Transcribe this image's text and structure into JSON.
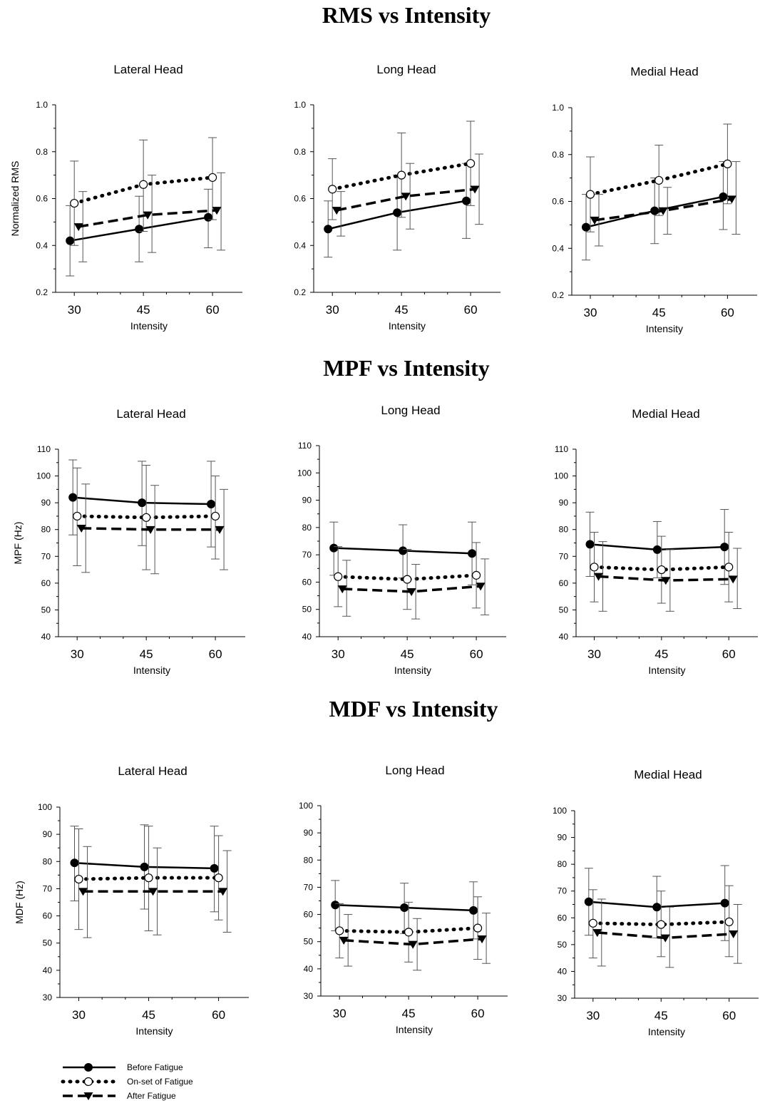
{
  "legend": [
    {
      "name": "Before Fatigue",
      "style": "solid",
      "marker": "filled-circle"
    },
    {
      "name": "On-set of Fatigue",
      "style": "dotted",
      "marker": "open-circle"
    },
    {
      "name": "After Fatigue",
      "style": "dashed",
      "marker": "filled-triangle-down"
    }
  ],
  "colors": {
    "line": "#000000",
    "errorbar": "#555555",
    "background": "#ffffff"
  },
  "chart_data": [
    {
      "type": "line",
      "section_title": "RMS vs Intensity",
      "title": "Lateral Head",
      "xlabel": "Intensity",
      "ylabel": "Normalized RMS",
      "categories": [
        "30",
        "45",
        "60"
      ],
      "ylim": [
        0.2,
        1.0
      ],
      "yticks": [
        "0.2",
        "0.4",
        "0.6",
        "0.8",
        "1.0"
      ],
      "series": [
        {
          "name": "Before Fatigue",
          "values": [
            0.42,
            0.47,
            0.52
          ],
          "upper": [
            0.57,
            0.61,
            0.64
          ],
          "lower": [
            0.27,
            0.33,
            0.39
          ]
        },
        {
          "name": "On-set of Fatigue",
          "values": [
            0.58,
            0.66,
            0.69
          ],
          "upper": [
            0.76,
            0.85,
            0.86
          ],
          "lower": [
            0.4,
            0.46,
            0.51
          ]
        },
        {
          "name": "After Fatigue",
          "values": [
            0.48,
            0.53,
            0.55
          ],
          "upper": [
            0.63,
            0.7,
            0.71
          ],
          "lower": [
            0.33,
            0.37,
            0.38
          ]
        }
      ]
    },
    {
      "type": "line",
      "section_title": "RMS vs Intensity",
      "title": "Long Head",
      "xlabel": "Intensity",
      "ylabel": "",
      "categories": [
        "30",
        "45",
        "60"
      ],
      "ylim": [
        0.2,
        1.0
      ],
      "yticks": [
        "0.2",
        "0.4",
        "0.6",
        "0.8",
        "1.0"
      ],
      "series": [
        {
          "name": "Before Fatigue",
          "values": [
            0.47,
            0.54,
            0.59
          ],
          "upper": [
            0.59,
            0.7,
            0.75
          ],
          "lower": [
            0.35,
            0.38,
            0.43
          ]
        },
        {
          "name": "On-set of Fatigue",
          "values": [
            0.64,
            0.7,
            0.75
          ],
          "upper": [
            0.77,
            0.88,
            0.93
          ],
          "lower": [
            0.51,
            0.52,
            0.57
          ]
        },
        {
          "name": "After Fatigue",
          "values": [
            0.55,
            0.61,
            0.64
          ],
          "upper": [
            0.63,
            0.75,
            0.79
          ],
          "lower": [
            0.44,
            0.47,
            0.49
          ]
        }
      ]
    },
    {
      "type": "line",
      "section_title": "RMS vs Intensity",
      "title": "Medial Head",
      "xlabel": "Intensity",
      "ylabel": "",
      "categories": [
        "30",
        "45",
        "60"
      ],
      "ylim": [
        0.2,
        1.0
      ],
      "yticks": [
        "0.2",
        "0.4",
        "0.6",
        "0.8",
        "1.0"
      ],
      "series": [
        {
          "name": "Before Fatigue",
          "values": [
            0.49,
            0.56,
            0.62
          ],
          "upper": [
            0.63,
            0.7,
            0.77
          ],
          "lower": [
            0.35,
            0.42,
            0.48
          ]
        },
        {
          "name": "On-set of Fatigue",
          "values": [
            0.63,
            0.69,
            0.76
          ],
          "upper": [
            0.79,
            0.84,
            0.93
          ],
          "lower": [
            0.47,
            0.54,
            0.59
          ]
        },
        {
          "name": "After Fatigue",
          "values": [
            0.52,
            0.56,
            0.61
          ],
          "upper": [
            0.63,
            0.66,
            0.77
          ],
          "lower": [
            0.41,
            0.46,
            0.46
          ]
        }
      ]
    },
    {
      "type": "line",
      "section_title": "MPF vs Intensity",
      "title": "Lateral Head",
      "xlabel": "Intensity",
      "ylabel": "MPF (Hz)",
      "categories": [
        "30",
        "45",
        "60"
      ],
      "ylim": [
        40,
        110
      ],
      "yticks": [
        "40",
        "50",
        "60",
        "70",
        "80",
        "90",
        "100",
        "110"
      ],
      "series": [
        {
          "name": "Before Fatigue",
          "values": [
            92,
            90,
            89.5
          ],
          "upper": [
            106,
            105.5,
            105.5
          ],
          "lower": [
            78,
            74,
            73.5
          ]
        },
        {
          "name": "On-set of Fatigue",
          "values": [
            85,
            84.5,
            85
          ],
          "upper": [
            103,
            104,
            100
          ],
          "lower": [
            66.5,
            65,
            69
          ]
        },
        {
          "name": "After Fatigue",
          "values": [
            80.5,
            80,
            80
          ],
          "upper": [
            97,
            96.5,
            95
          ],
          "lower": [
            64,
            63.5,
            65
          ]
        }
      ]
    },
    {
      "type": "line",
      "section_title": "MPF vs Intensity",
      "title": "Long Head",
      "xlabel": "Intensity",
      "ylabel": "",
      "categories": [
        "30",
        "45",
        "60"
      ],
      "ylim": [
        40,
        110
      ],
      "yticks": [
        "40",
        "50",
        "60",
        "70",
        "80",
        "90",
        "100",
        "110"
      ],
      "series": [
        {
          "name": "Before Fatigue",
          "values": [
            72.5,
            71.5,
            70.5
          ],
          "upper": [
            82,
            81,
            82
          ],
          "lower": [
            62.5,
            61.5,
            59
          ]
        },
        {
          "name": "On-set of Fatigue",
          "values": [
            62,
            61,
            62.5
          ],
          "upper": [
            73,
            72,
            74.5
          ],
          "lower": [
            51,
            50,
            50.5
          ]
        },
        {
          "name": "After Fatigue",
          "values": [
            57.5,
            56.5,
            58.5
          ],
          "upper": [
            68,
            66.5,
            68.5
          ],
          "lower": [
            47.5,
            46.5,
            48
          ]
        }
      ]
    },
    {
      "type": "line",
      "section_title": "MPF vs Intensity",
      "title": "Medial Head",
      "xlabel": "Intensity",
      "ylabel": "",
      "categories": [
        "30",
        "45",
        "60"
      ],
      "ylim": [
        40,
        110
      ],
      "yticks": [
        "40",
        "50",
        "60",
        "70",
        "80",
        "90",
        "100",
        "110"
      ],
      "series": [
        {
          "name": "Before Fatigue",
          "values": [
            74.5,
            72.5,
            73.5
          ],
          "upper": [
            86.5,
            83,
            87.5
          ],
          "lower": [
            62.5,
            62,
            59.5
          ]
        },
        {
          "name": "On-set of Fatigue",
          "values": [
            66,
            65,
            66
          ],
          "upper": [
            79,
            77.5,
            79
          ],
          "lower": [
            53,
            52.5,
            53
          ]
        },
        {
          "name": "After Fatigue",
          "values": [
            62.5,
            61,
            61.5
          ],
          "upper": [
            75.5,
            72.5,
            73
          ],
          "lower": [
            49.5,
            49.5,
            50.5
          ]
        }
      ]
    },
    {
      "type": "line",
      "section_title": "MDF vs Intensity",
      "title": "Lateral Head",
      "xlabel": "Intensity",
      "ylabel": "MDF (Hz)",
      "categories": [
        "30",
        "45",
        "60"
      ],
      "ylim": [
        30,
        100
      ],
      "yticks": [
        "30",
        "40",
        "50",
        "60",
        "70",
        "80",
        "90",
        "100"
      ],
      "series": [
        {
          "name": "Before Fatigue",
          "values": [
            79.5,
            78,
            77.5
          ],
          "upper": [
            93,
            93.5,
            93
          ],
          "lower": [
            65.5,
            62.5,
            61.5
          ]
        },
        {
          "name": "On-set of Fatigue",
          "values": [
            73.5,
            74,
            74
          ],
          "upper": [
            92,
            93,
            89.5
          ],
          "lower": [
            55,
            54.5,
            58.5
          ]
        },
        {
          "name": "After Fatigue",
          "values": [
            69,
            69,
            69
          ],
          "upper": [
            85.5,
            85,
            84
          ],
          "lower": [
            52,
            53,
            54
          ]
        }
      ]
    },
    {
      "type": "line",
      "section_title": "MDF vs Intensity",
      "title": "Long Head",
      "xlabel": "Intensity",
      "ylabel": "",
      "categories": [
        "30",
        "45",
        "60"
      ],
      "ylim": [
        30,
        100
      ],
      "yticks": [
        "30",
        "40",
        "50",
        "60",
        "70",
        "80",
        "90",
        "100"
      ],
      "series": [
        {
          "name": "Before Fatigue",
          "values": [
            63.5,
            62.5,
            61.5
          ],
          "upper": [
            72.5,
            71.5,
            72
          ],
          "lower": [
            54,
            53,
            51
          ]
        },
        {
          "name": "On-set of Fatigue",
          "values": [
            54,
            53.5,
            55
          ],
          "upper": [
            64,
            64.5,
            66.5
          ],
          "lower": [
            44,
            42.5,
            43.5
          ]
        },
        {
          "name": "After Fatigue",
          "values": [
            50.5,
            49,
            51
          ],
          "upper": [
            60,
            58.5,
            60.5
          ],
          "lower": [
            41,
            39.5,
            42
          ]
        }
      ]
    },
    {
      "type": "line",
      "section_title": "MDF vs Intensity",
      "title": "Medial Head",
      "xlabel": "Intensity",
      "ylabel": "",
      "categories": [
        "30",
        "45",
        "60"
      ],
      "ylim": [
        30,
        100
      ],
      "yticks": [
        "30",
        "40",
        "50",
        "60",
        "70",
        "80",
        "90",
        "100"
      ],
      "series": [
        {
          "name": "Before Fatigue",
          "values": [
            66,
            64,
            65.5
          ],
          "upper": [
            78.5,
            75.5,
            79.5
          ],
          "lower": [
            53.5,
            52.5,
            51.5
          ]
        },
        {
          "name": "On-set of Fatigue",
          "values": [
            58,
            57.5,
            58.5
          ],
          "upper": [
            70.5,
            70,
            72
          ],
          "lower": [
            45,
            45.5,
            45.5
          ]
        },
        {
          "name": "After Fatigue",
          "values": [
            54.5,
            52.5,
            54
          ],
          "upper": [
            67,
            64,
            65
          ],
          "lower": [
            42,
            41.5,
            43
          ]
        }
      ]
    }
  ]
}
